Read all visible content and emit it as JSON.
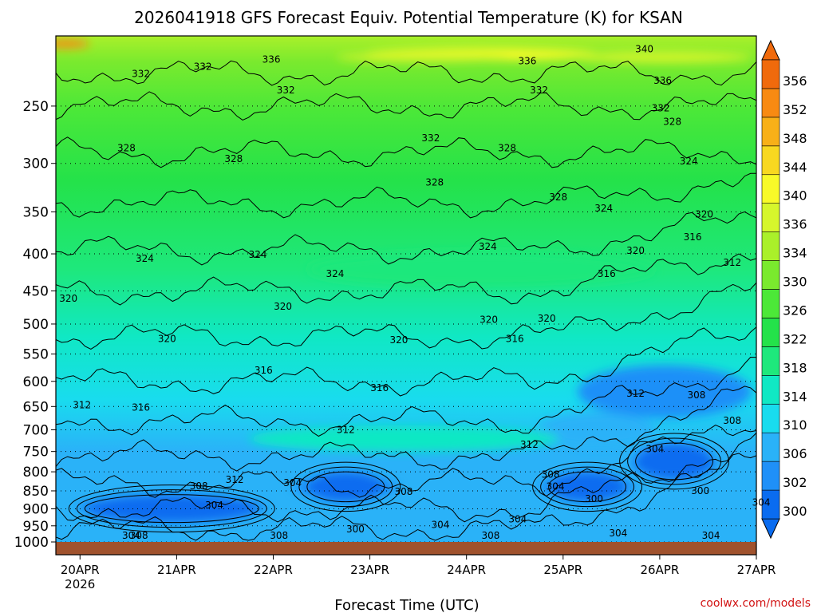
{
  "chart_data": {
    "type": "heatmap",
    "subtype": "filled contour time-height cross-section",
    "title": "2026041918 GFS Forecast Equiv. Potential Temperature (K) for KSAN",
    "xlabel": "Forecast Time (UTC)",
    "ylabel": "",
    "x_ticks": [
      "20APR",
      "21APR",
      "22APR",
      "23APR",
      "24APR",
      "25APR",
      "26APR",
      "27APR"
    ],
    "x_year_label": "2026",
    "x_range_days": [
      0,
      7.25
    ],
    "y_ticks": [
      250,
      300,
      350,
      400,
      450,
      500,
      550,
      600,
      650,
      700,
      750,
      800,
      850,
      900,
      950,
      1000
    ],
    "y_range_hpa": [
      200,
      1000
    ],
    "y_scale": "log-pressure",
    "colorbar": {
      "levels": [
        300,
        302,
        306,
        310,
        314,
        318,
        322,
        326,
        330,
        334,
        336,
        340,
        344,
        348,
        352,
        356
      ],
      "labels": [
        "300",
        "302",
        "306",
        "310",
        "314",
        "318",
        "322",
        "326",
        "330",
        "334",
        "336",
        "340",
        "344",
        "348",
        "352",
        "356"
      ],
      "colors": [
        "#0a6cf0",
        "#1f90f8",
        "#2ab2f8",
        "#19dcee",
        "#10e8c4",
        "#1ee87c",
        "#24e24a",
        "#4ce838",
        "#7aea2e",
        "#aaf02a",
        "#d6f62c",
        "#f8fa28",
        "#f8d820",
        "#f8b018",
        "#f88a12",
        "#f06a0c"
      ]
    },
    "contour_interval_K": 4,
    "contour_labels": [
      {
        "value": "332",
        "day": 0.88,
        "p": 225
      },
      {
        "value": "332",
        "day": 1.52,
        "p": 220
      },
      {
        "value": "336",
        "day": 2.23,
        "p": 215
      },
      {
        "value": "332",
        "day": 2.38,
        "p": 237
      },
      {
        "value": "332",
        "day": 3.88,
        "p": 276
      },
      {
        "value": "336",
        "day": 4.88,
        "p": 216
      },
      {
        "value": "332",
        "day": 5.0,
        "p": 237
      },
      {
        "value": "340",
        "day": 6.09,
        "p": 208
      },
      {
        "value": "336",
        "day": 6.28,
        "p": 230
      },
      {
        "value": "332",
        "day": 6.26,
        "p": 251
      },
      {
        "value": "328",
        "day": 6.38,
        "p": 262
      },
      {
        "value": "328",
        "day": 0.73,
        "p": 285
      },
      {
        "value": "328",
        "day": 1.84,
        "p": 295
      },
      {
        "value": "328",
        "day": 3.92,
        "p": 318
      },
      {
        "value": "328",
        "day": 4.67,
        "p": 285
      },
      {
        "value": "328",
        "day": 5.2,
        "p": 333
      },
      {
        "value": "324",
        "day": 6.55,
        "p": 297
      },
      {
        "value": "324",
        "day": 5.67,
        "p": 345
      },
      {
        "value": "320",
        "day": 6.71,
        "p": 352
      },
      {
        "value": "316",
        "day": 6.59,
        "p": 378
      },
      {
        "value": "312",
        "day": 7.0,
        "p": 410
      },
      {
        "value": "320",
        "day": 6.0,
        "p": 395
      },
      {
        "value": "316",
        "day": 5.7,
        "p": 425
      },
      {
        "value": "324",
        "day": 0.92,
        "p": 405
      },
      {
        "value": "324",
        "day": 2.09,
        "p": 400
      },
      {
        "value": "324",
        "day": 2.89,
        "p": 425
      },
      {
        "value": "324",
        "day": 4.47,
        "p": 390
      },
      {
        "value": "320",
        "day": 0.13,
        "p": 460
      },
      {
        "value": "320",
        "day": 2.35,
        "p": 472
      },
      {
        "value": "320",
        "day": 4.48,
        "p": 492
      },
      {
        "value": "320",
        "day": 5.08,
        "p": 490
      },
      {
        "value": "320",
        "day": 3.55,
        "p": 525
      },
      {
        "value": "316",
        "day": 4.75,
        "p": 523
      },
      {
        "value": "320",
        "day": 1.15,
        "p": 523
      },
      {
        "value": "316",
        "day": 2.15,
        "p": 578
      },
      {
        "value": "316",
        "day": 3.35,
        "p": 611
      },
      {
        "value": "316",
        "day": 0.88,
        "p": 650
      },
      {
        "value": "312",
        "day": 0.27,
        "p": 645
      },
      {
        "value": "312",
        "day": 6.0,
        "p": 622
      },
      {
        "value": "308",
        "day": 6.63,
        "p": 625
      },
      {
        "value": "308",
        "day": 7.0,
        "p": 678
      },
      {
        "value": "312",
        "day": 3.0,
        "p": 698
      },
      {
        "value": "312",
        "day": 4.9,
        "p": 732
      },
      {
        "value": "304",
        "day": 6.2,
        "p": 742
      },
      {
        "value": "312",
        "day": 1.85,
        "p": 818
      },
      {
        "value": "308",
        "day": 1.48,
        "p": 835
      },
      {
        "value": "304",
        "day": 2.45,
        "p": 827
      },
      {
        "value": "308",
        "day": 3.6,
        "p": 850
      },
      {
        "value": "308",
        "day": 5.12,
        "p": 805
      },
      {
        "value": "304",
        "day": 5.17,
        "p": 836
      },
      {
        "value": "300",
        "day": 5.57,
        "p": 870
      },
      {
        "value": "300",
        "day": 6.67,
        "p": 848
      },
      {
        "value": "304",
        "day": 7.3,
        "p": 880
      },
      {
        "value": "304",
        "day": 1.64,
        "p": 888
      },
      {
        "value": "300",
        "day": 3.1,
        "p": 958
      },
      {
        "value": "304",
        "day": 3.98,
        "p": 945
      },
      {
        "value": "304",
        "day": 4.78,
        "p": 928
      },
      {
        "value": "304",
        "day": 5.82,
        "p": 970
      },
      {
        "value": "308",
        "day": 2.31,
        "p": 1003
      },
      {
        "value": "308",
        "day": 4.5,
        "p": 998
      },
      {
        "value": "304",
        "day": 0.78,
        "p": 1018
      },
      {
        "value": "308",
        "day": 0.86,
        "p": 1047
      },
      {
        "value": "304",
        "day": 6.78,
        "p": 1018
      }
    ],
    "cold_pools_below_300K": [
      {
        "day_range": [
          0.3,
          2.1
        ],
        "p_range": [
          860,
          940
        ]
      },
      {
        "day_range": [
          2.6,
          3.4
        ],
        "p_range": [
          800,
          880
        ]
      },
      {
        "day_range": [
          5.1,
          5.9
        ],
        "p_range": [
          800,
          880
        ]
      },
      {
        "day_range": [
          6.0,
          6.8
        ],
        "p_range": [
          730,
          820
        ]
      }
    ],
    "ground_below_hpa": 1000,
    "ground_color": "#a0522d",
    "credit": "coolwx.com/models"
  }
}
